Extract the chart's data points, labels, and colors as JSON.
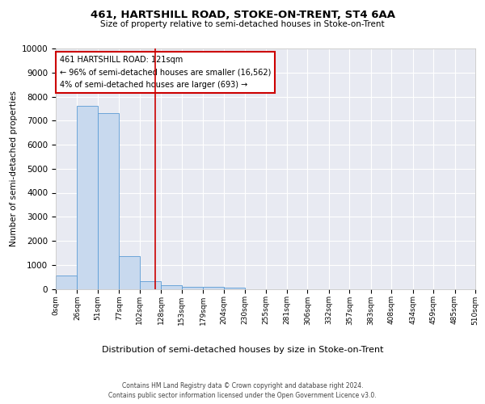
{
  "title": "461, HARTSHILL ROAD, STOKE-ON-TRENT, ST4 6AA",
  "subtitle": "Size of property relative to semi-detached houses in Stoke-on-Trent",
  "xlabel": "Distribution of semi-detached houses by size in Stoke-on-Trent",
  "ylabel": "Number of semi-detached properties",
  "bin_edges": [
    0,
    26,
    51,
    77,
    102,
    128,
    153,
    179,
    204,
    230,
    255,
    281,
    306,
    332,
    357,
    383,
    408,
    434,
    459,
    485,
    510
  ],
  "bar_heights": [
    550,
    7600,
    7300,
    1350,
    330,
    150,
    100,
    100,
    50,
    0,
    0,
    0,
    0,
    0,
    0,
    0,
    0,
    0,
    0,
    0
  ],
  "bar_color": "#c8d9ee",
  "bar_edge_color": "#5b9bd5",
  "background_color": "#e8eaf2",
  "grid_color": "#ffffff",
  "vline_x": 121,
  "vline_color": "#cc0000",
  "annotation_title": "461 HARTSHILL ROAD: 121sqm",
  "annotation_line1": "← 96% of semi-detached houses are smaller (16,562)",
  "annotation_line2": "4% of semi-detached houses are larger (693) →",
  "annotation_box_edgecolor": "#cc0000",
  "annotation_box_fill": "#ffffff",
  "footer_line1": "Contains HM Land Registry data © Crown copyright and database right 2024.",
  "footer_line2": "Contains public sector information licensed under the Open Government Licence v3.0.",
  "ylim": [
    0,
    10000
  ],
  "yticks": [
    0,
    1000,
    2000,
    3000,
    4000,
    5000,
    6000,
    7000,
    8000,
    9000,
    10000
  ],
  "tick_labels": [
    "0sqm",
    "26sqm",
    "51sqm",
    "77sqm",
    "102sqm",
    "128sqm",
    "153sqm",
    "179sqm",
    "204sqm",
    "230sqm",
    "255sqm",
    "281sqm",
    "306sqm",
    "332sqm",
    "357sqm",
    "383sqm",
    "408sqm",
    "434sqm",
    "459sqm",
    "485sqm",
    "510sqm"
  ]
}
